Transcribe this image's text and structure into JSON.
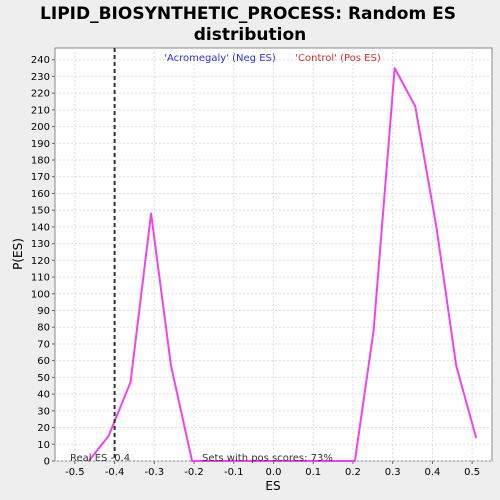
{
  "chart_data": {
    "type": "line",
    "title_line1": "LIPID_BIOSYNTHETIC_PROCESS: Random ES",
    "title_line2": "distribution",
    "xlabel": "ES",
    "ylabel": "P(ES)",
    "xlim": [
      -0.55,
      0.55
    ],
    "ylim": [
      0,
      247
    ],
    "x_ticks": [
      -0.5,
      -0.4,
      -0.3,
      -0.2,
      -0.1,
      0.0,
      0.1,
      0.2,
      0.3,
      0.4,
      0.5
    ],
    "x_tick_labels": [
      "-0.5",
      "-0.4",
      "-0.3",
      "-0.2",
      "-0.1",
      "0.0",
      "0.1",
      "0.2",
      "0.3",
      "0.4",
      "0.5"
    ],
    "y_ticks": [
      0,
      10,
      20,
      30,
      40,
      50,
      60,
      70,
      80,
      90,
      100,
      110,
      120,
      130,
      140,
      150,
      160,
      170,
      180,
      190,
      200,
      210,
      220,
      230,
      240
    ],
    "grid": true,
    "legend_neg": "'Acromegaly' (Neg ES)",
    "legend_pos": "'Control' (Pos ES)",
    "legend_neg_color": "#3333cc",
    "legend_pos_color": "#cc3333",
    "line_color": "#ee44ee",
    "series": [
      {
        "x": [
          -0.465,
          -0.415,
          -0.36,
          -0.308,
          -0.258,
          -0.205,
          0.205,
          0.252,
          0.305,
          0.357,
          0.41,
          0.46,
          0.51
        ],
        "values": [
          0,
          15,
          47,
          148,
          57,
          0,
          0,
          78,
          235,
          212,
          140,
          57,
          14
        ]
      }
    ],
    "real_es": -0.4,
    "real_es_label": "Real ES -0.4",
    "annotation": "Sets with pos scores: 73%"
  }
}
